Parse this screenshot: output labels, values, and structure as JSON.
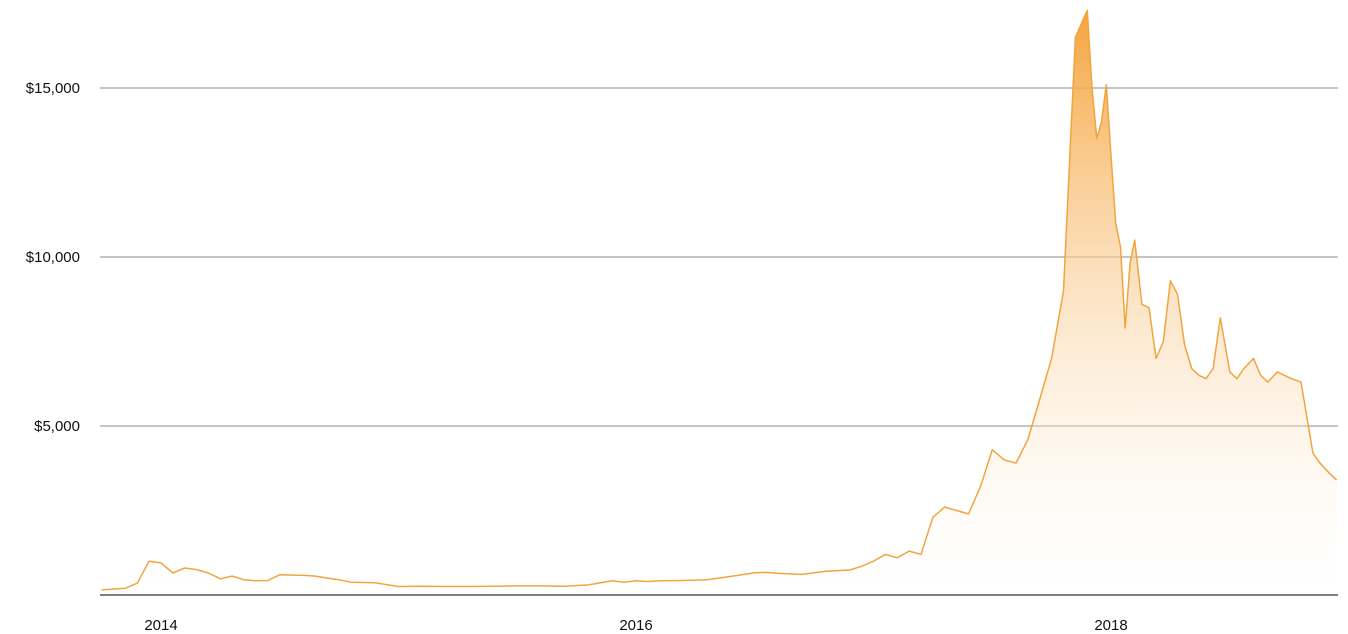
{
  "chart_data": {
    "type": "area",
    "title": "",
    "xlabel": "",
    "ylabel": "",
    "xlim": [
      2013.75,
      2018.95
    ],
    "ylim": [
      0,
      15000
    ],
    "grid": true,
    "y_ticks": [
      {
        "value": 5000,
        "label": "$5,000"
      },
      {
        "value": 10000,
        "label": "$10,000"
      },
      {
        "value": 15000,
        "label": "$15,000"
      }
    ],
    "x_ticks": [
      {
        "value": 2014,
        "label": "2014"
      },
      {
        "value": 2016,
        "label": "2016"
      },
      {
        "value": 2018,
        "label": "2018"
      }
    ],
    "colors": {
      "line": "#f0a540",
      "fill_top": "#f5a43c",
      "fill_bottom": "#ffffff",
      "grid": "#8a8a8a",
      "baseline": "#555555"
    },
    "series": [
      {
        "x": [
          2013.75,
          2013.85,
          2013.9,
          2013.95,
          2014.0,
          2014.05,
          2014.1,
          2014.15,
          2014.2,
          2014.25,
          2014.3,
          2014.35,
          2014.4,
          2014.45,
          2014.5,
          2014.55,
          2014.6,
          2014.65,
          2014.7,
          2014.75,
          2014.8,
          2014.9,
          2015.0,
          2015.1,
          2015.2,
          2015.3,
          2015.4,
          2015.5,
          2015.6,
          2015.7,
          2015.8,
          2015.9,
          2015.95,
          2016.0,
          2016.05,
          2016.1,
          2016.2,
          2016.3,
          2016.4,
          2016.5,
          2016.55,
          2016.6,
          2016.7,
          2016.8,
          2016.9,
          2016.95,
          2017.0,
          2017.05,
          2017.1,
          2017.15,
          2017.2,
          2017.25,
          2017.3,
          2017.35,
          2017.4,
          2017.45,
          2017.5,
          2017.55,
          2017.6,
          2017.65,
          2017.7,
          2017.75,
          2017.8,
          2017.85,
          2017.9,
          2017.92,
          2017.94,
          2017.96,
          2017.98,
          2018.0,
          2018.02,
          2018.04,
          2018.06,
          2018.08,
          2018.1,
          2018.13,
          2018.16,
          2018.19,
          2018.22,
          2018.25,
          2018.28,
          2018.31,
          2018.34,
          2018.37,
          2018.4,
          2018.43,
          2018.46,
          2018.5,
          2018.53,
          2018.56,
          2018.6,
          2018.63,
          2018.66,
          2018.7,
          2018.73,
          2018.76,
          2018.8,
          2018.85,
          2018.88,
          2018.92,
          2018.95
        ],
        "y": [
          150,
          200,
          350,
          1000,
          950,
          650,
          800,
          750,
          650,
          480,
          560,
          450,
          420,
          430,
          600,
          590,
          580,
          560,
          500,
          450,
          380,
          360,
          250,
          260,
          250,
          250,
          260,
          270,
          270,
          260,
          300,
          420,
          380,
          420,
          400,
          420,
          430,
          450,
          550,
          660,
          670,
          640,
          610,
          700,
          740,
          850,
          1000,
          1200,
          1100,
          1300,
          1200,
          2300,
          2600,
          2500,
          2400,
          3200,
          4300,
          4000,
          3900,
          4600,
          5800,
          7000,
          9000,
          16500,
          17300,
          15000,
          13500,
          14000,
          15100,
          13000,
          11000,
          10300,
          7900,
          9800,
          10500,
          8600,
          8500,
          7000,
          7500,
          9300,
          8900,
          7400,
          6700,
          6500,
          6400,
          6700,
          8200,
          6600,
          6400,
          6700,
          7000,
          6500,
          6300,
          6600,
          6500,
          6400,
          6300,
          4200,
          3900,
          3600,
          3400
        ]
      }
    ]
  }
}
